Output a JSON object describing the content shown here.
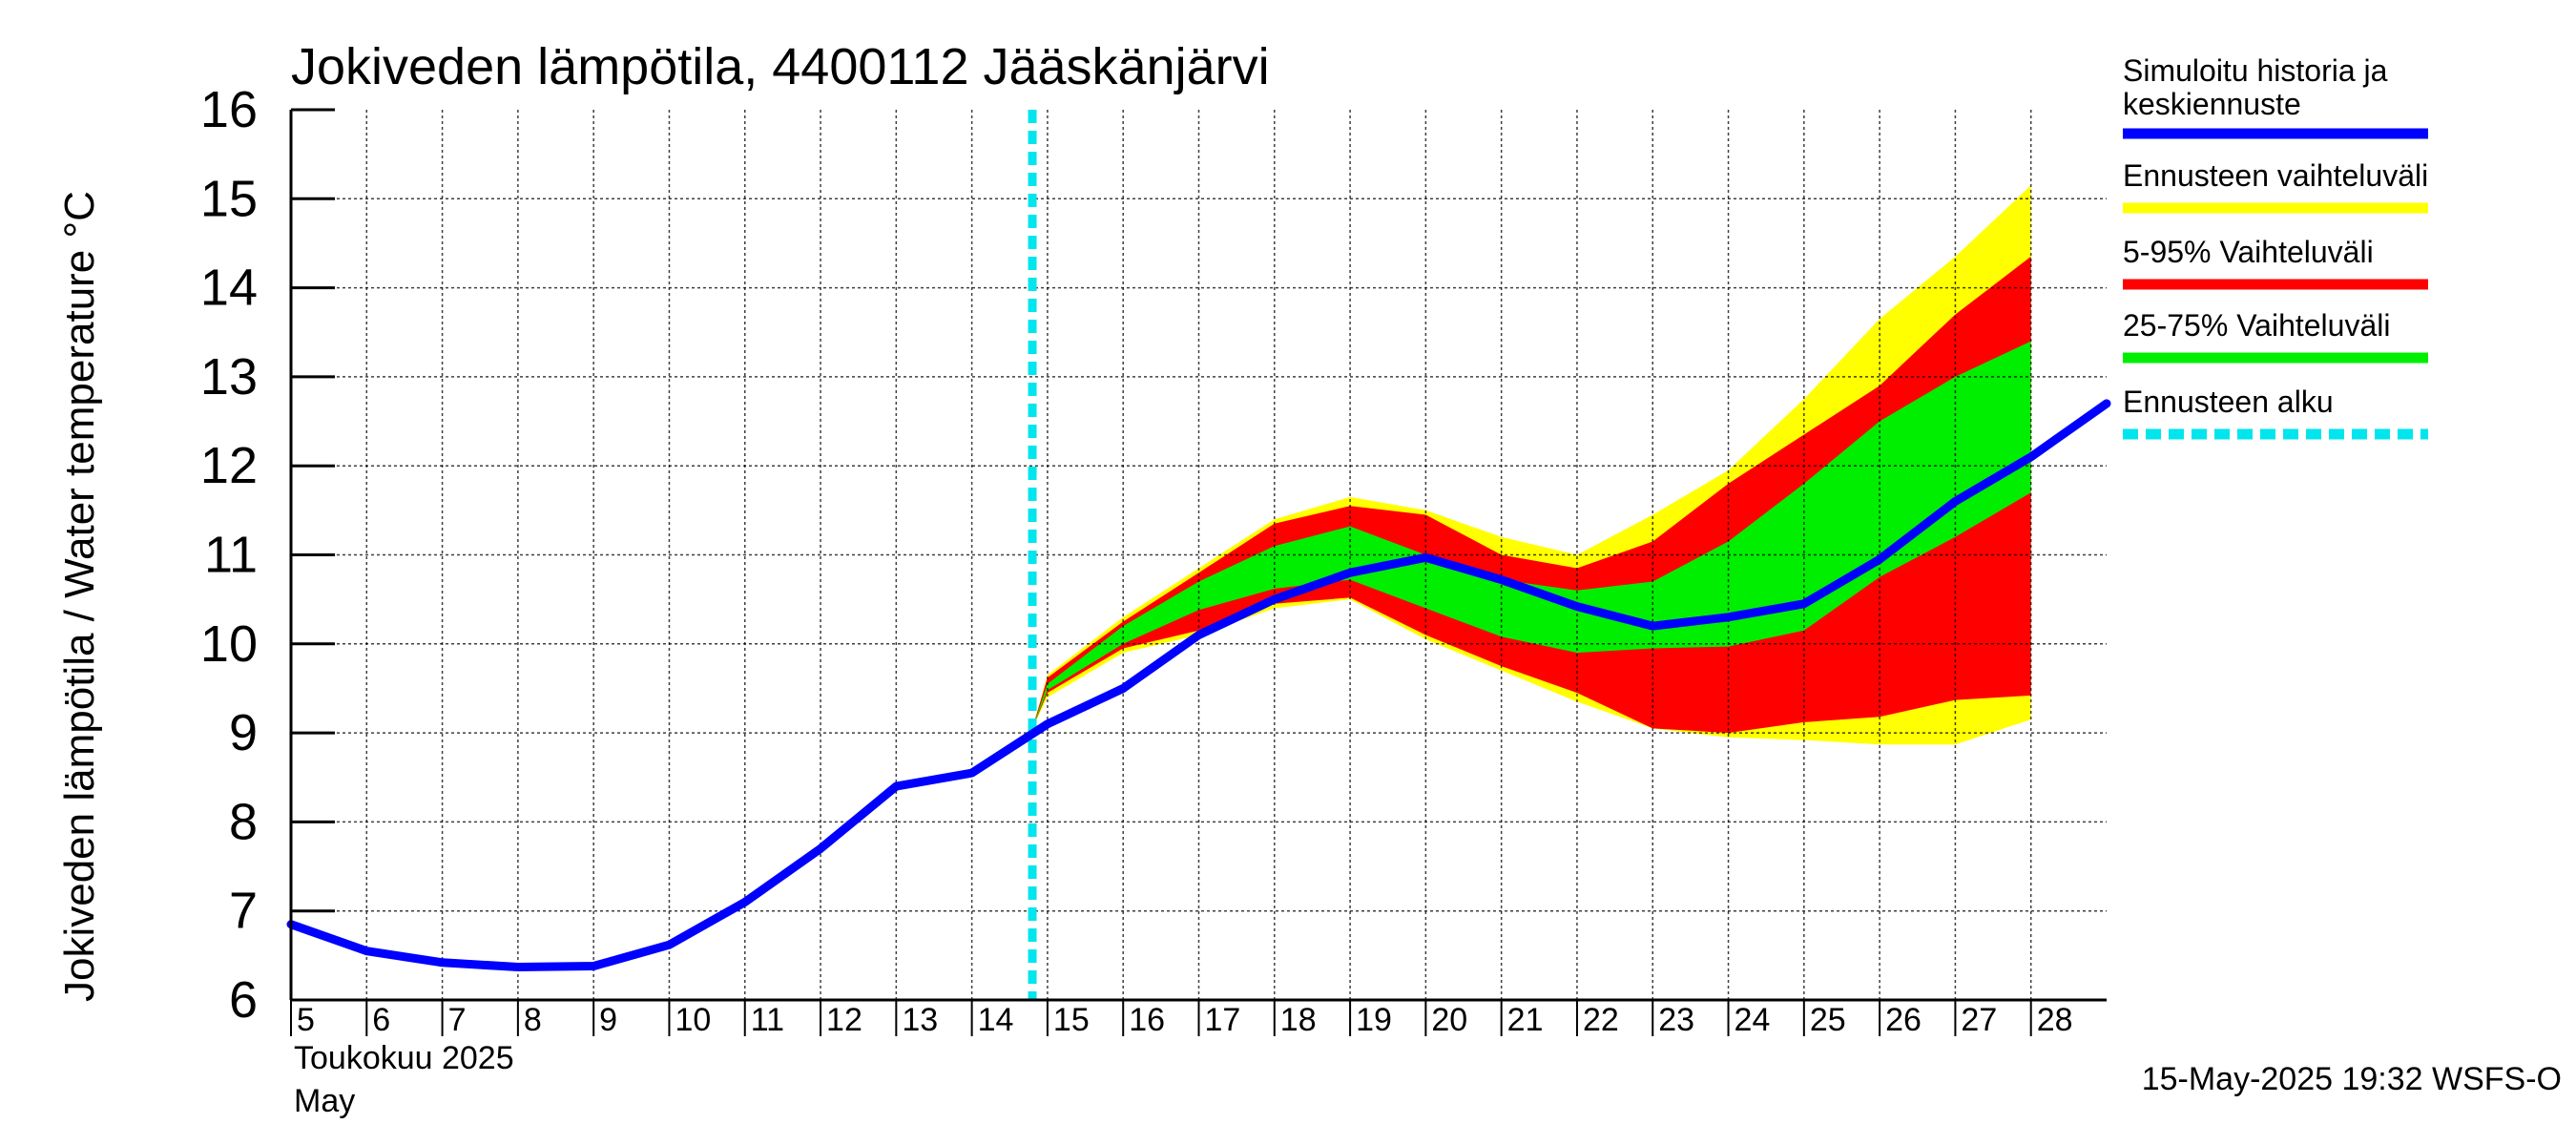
{
  "chart_data": {
    "type": "area",
    "title": "Jokiveden lämpötila, 4400112 Jääskänjärvi",
    "ylabel": "Jokiveden lämpötila / Water temperature   °C",
    "ylim": [
      6,
      16
    ],
    "yticks": [
      6,
      7,
      8,
      9,
      10,
      11,
      12,
      13,
      14,
      15,
      16
    ],
    "xlim": [
      5,
      29
    ],
    "xticks": [
      5,
      6,
      7,
      8,
      9,
      10,
      11,
      12,
      13,
      14,
      15,
      16,
      17,
      18,
      19,
      20,
      21,
      22,
      23,
      24,
      25,
      26,
      27,
      28
    ],
    "month_label": "Toukokuu  2025",
    "month_label_en": "May",
    "grid": true,
    "legend_position": "right",
    "forecast_start": 14.8,
    "x": [
      5,
      6,
      7,
      8,
      9,
      10,
      11,
      12,
      13,
      14,
      15,
      16,
      17,
      18,
      19,
      20,
      21,
      22,
      23,
      24,
      25,
      26,
      27,
      28,
      29
    ],
    "series": [
      {
        "name": "Simuloitu historia ja keskiennuste",
        "color": "#0000ff",
        "values": [
          6.85,
          6.55,
          6.42,
          6.37,
          6.38,
          6.62,
          7.1,
          7.7,
          8.4,
          8.55,
          9.1,
          9.5,
          10.1,
          10.5,
          10.8,
          10.97,
          10.72,
          10.42,
          10.2,
          10.3,
          10.45,
          10.95,
          11.6,
          12.1,
          12.7
        ]
      }
    ],
    "bands": [
      {
        "name": "Ennusteen vaihteluväli",
        "color": "#ffff00",
        "lower": [
          9.05,
          9.4,
          9.9,
          10.1,
          10.4,
          10.5,
          10.05,
          9.7,
          9.35,
          9.05,
          8.95,
          8.92,
          8.87,
          8.87,
          9.15
        ],
        "upper": [
          9.05,
          9.65,
          10.3,
          10.85,
          11.4,
          11.65,
          11.5,
          11.2,
          11.0,
          11.45,
          11.95,
          12.75,
          13.65,
          14.35,
          15.15
        ]
      },
      {
        "name": "5-95% Vaihteluväli",
        "color": "#ff0000",
        "lower": [
          9.05,
          9.45,
          9.95,
          10.15,
          10.45,
          10.52,
          10.1,
          9.75,
          9.45,
          9.05,
          9.0,
          9.12,
          9.18,
          9.37,
          9.42
        ],
        "upper": [
          9.05,
          9.62,
          10.25,
          10.8,
          11.35,
          11.55,
          11.45,
          11.0,
          10.85,
          11.15,
          11.8,
          12.35,
          12.9,
          13.7,
          14.35
        ]
      },
      {
        "name": "25-75% Vaihteluväli",
        "color": "#00ee00",
        "lower": [
          9.05,
          9.48,
          10.0,
          10.38,
          10.62,
          10.72,
          10.4,
          10.08,
          9.9,
          9.95,
          9.97,
          10.15,
          10.75,
          11.2,
          11.7
        ],
        "upper": [
          9.05,
          9.55,
          10.2,
          10.7,
          11.1,
          11.32,
          11.0,
          10.72,
          10.6,
          10.7,
          11.15,
          11.8,
          12.5,
          13.0,
          13.4
        ]
      }
    ],
    "legend": [
      {
        "label": "Simuloitu historia ja",
        "label2": "keskiennuste",
        "color": "#0000ff",
        "style": "solid"
      },
      {
        "label": "Ennusteen vaihteluväli",
        "color": "#ffff00",
        "style": "solid"
      },
      {
        "label": "5-95% Vaihteluväli",
        "color": "#ff0000",
        "style": "solid"
      },
      {
        "label": "25-75% Vaihteluväli",
        "color": "#00ee00",
        "style": "solid"
      },
      {
        "label": "Ennusteen alku",
        "color": "#00e5ee",
        "style": "dashed"
      }
    ],
    "footer": "15-May-2025 19:32 WSFS-O"
  }
}
